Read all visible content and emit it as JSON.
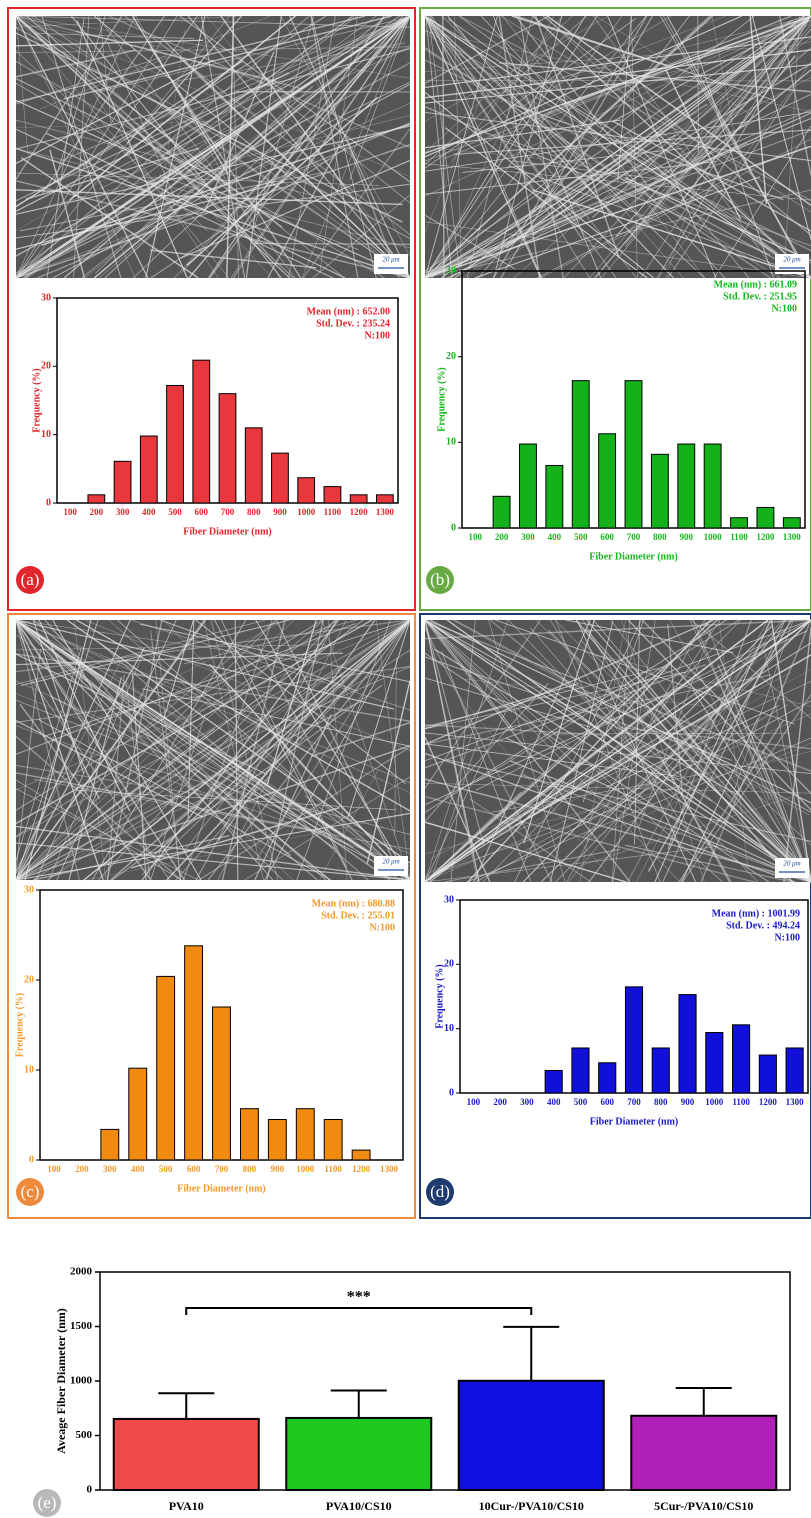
{
  "chart_data": [
    {
      "type": "bar",
      "panel_label": "(a)",
      "scale_bar": "20 μm",
      "color": "#e8383d",
      "text_color": "#e0252b",
      "frame_color": "#e0252b",
      "x_label": "Fiber Diameter (nm)",
      "y_label": "Frequency (%)",
      "annotations": [
        "Mean (nm) : 652.00",
        "Std. Dev. : 235.24",
        "N:100"
      ],
      "categories": [
        "100",
        "200",
        "300",
        "400",
        "500",
        "600",
        "700",
        "800",
        "900",
        "1000",
        "1100",
        "1200",
        "1300"
      ],
      "values": [
        0,
        1.2,
        6.1,
        9.8,
        17.2,
        20.9,
        16,
        11,
        7.3,
        3.7,
        2.4,
        1.2,
        1.2
      ],
      "ylim": [
        0,
        30
      ],
      "yticks": [
        0,
        10,
        20,
        30
      ]
    },
    {
      "type": "bar",
      "panel_label": "(b)",
      "scale_bar": "20 μm",
      "color": "#13b21a",
      "text_color": "#14b81a",
      "frame_color": "#6aaa44",
      "x_label": "Fiber Diameter (nm)",
      "y_label": "Frequency (%)",
      "annotations": [
        "Mean (nm) : 661.09",
        "Std. Dev. : 251.95",
        "N:100"
      ],
      "categories": [
        "100",
        "200",
        "300",
        "400",
        "500",
        "600",
        "700",
        "800",
        "900",
        "1000",
        "1100",
        "1200",
        "1300"
      ],
      "values": [
        0,
        3.7,
        9.8,
        7.3,
        17.2,
        11,
        17.2,
        8.6,
        9.8,
        9.8,
        1.2,
        2.4,
        1.2
      ],
      "ylim": [
        0,
        30
      ],
      "yticks": [
        0,
        10,
        20,
        30
      ]
    },
    {
      "type": "bar",
      "panel_label": "(c)",
      "scale_bar": "20 μm",
      "color": "#f08a10",
      "text_color": "#f39a2a",
      "frame_color": "#ee8a3c",
      "x_label": "Fiber Diameter (nm)",
      "y_label": "Frequency (%)",
      "annotations": [
        "Mean (nm) : 680.88",
        "Std. Dev. : 255.01",
        "N:100"
      ],
      "categories": [
        "100",
        "200",
        "300",
        "400",
        "500",
        "600",
        "700",
        "800",
        "900",
        "1000",
        "1100",
        "1200",
        "1300"
      ],
      "values": [
        0,
        0,
        3.4,
        10.2,
        20.4,
        23.8,
        17,
        5.7,
        4.5,
        5.7,
        4.5,
        1.1,
        0
      ],
      "ylim": [
        0,
        30
      ],
      "yticks": [
        0,
        10,
        20,
        30
      ]
    },
    {
      "type": "bar",
      "panel_label": "(d)",
      "scale_bar": "20 μm",
      "color": "#1010d8",
      "text_color": "#1a1ac8",
      "frame_color": "#1f3a6e",
      "x_label": "Fiber Diameter (nm)",
      "y_label": "Frequency (%)",
      "annotations": [
        "Mean (nm) : 1001.99",
        "Std. Dev. : 494.24",
        "N:100"
      ],
      "categories": [
        "100",
        "200",
        "300",
        "400",
        "500",
        "600",
        "700",
        "800",
        "900",
        "1000",
        "1100",
        "1200",
        "1300"
      ],
      "values": [
        0,
        0,
        0,
        3.5,
        7,
        4.7,
        16.5,
        7,
        15.3,
        9.4,
        10.6,
        5.9,
        7
      ],
      "ylim": [
        0,
        30
      ],
      "yticks": [
        0,
        10,
        20,
        30
      ]
    },
    {
      "type": "errorbar",
      "panel_label": "(e)",
      "y_label": "Aveage Fiber Diameter (nm)",
      "categories": [
        "PVA10",
        "PVA10/CS10",
        "10Cur-/PVA10/CS10",
        "5Cur-/PVA10/CS10"
      ],
      "values": [
        652.0,
        661.09,
        1001.99,
        680.88
      ],
      "errors": [
        235.24,
        251.95,
        494.24,
        255.01
      ],
      "colors": [
        "#f04a4a",
        "#1ec81e",
        "#1010e0",
        "#b020b8"
      ],
      "significance": {
        "label": "***",
        "pair": [
          "PVA10",
          "10Cur-/PVA10/CS10"
        ]
      },
      "ylim": [
        0,
        2000
      ],
      "yticks": [
        0,
        500,
        1000,
        1500,
        2000
      ]
    }
  ]
}
